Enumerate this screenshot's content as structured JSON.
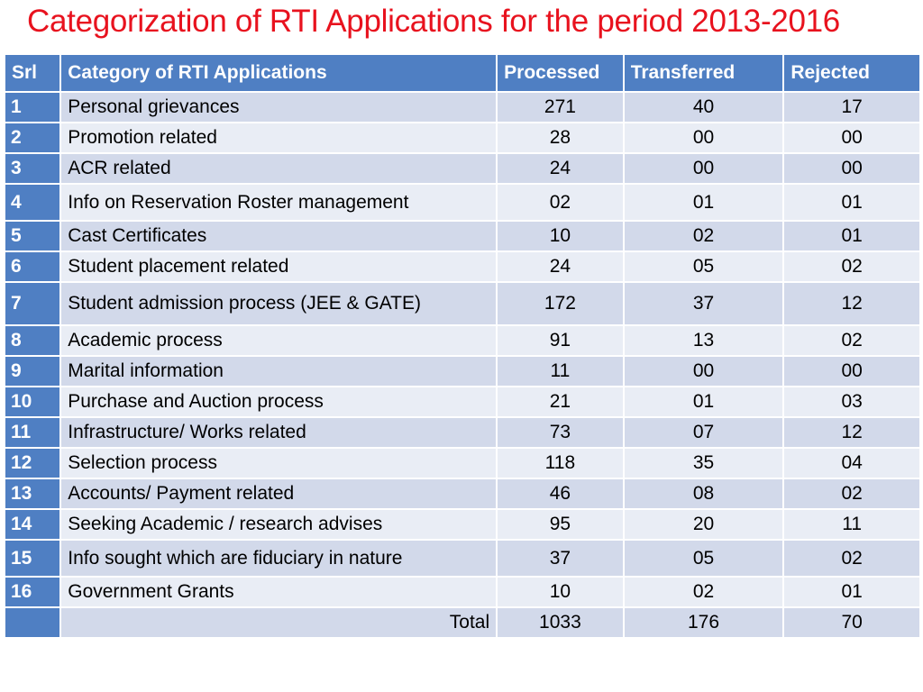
{
  "title": "Categorization of RTI Applications for the period 2013-2016",
  "table": {
    "headers": {
      "srl": "Srl",
      "category": "Category of RTI Applications",
      "processed": "Processed",
      "transferred": "Transferred",
      "rejected": "Rejected"
    },
    "rows": [
      {
        "srl": "1",
        "category": "Personal grievances",
        "processed": "271",
        "transferred": "40",
        "rejected": "17"
      },
      {
        "srl": "2",
        "category": "Promotion related",
        "processed": "28",
        "transferred": "00",
        "rejected": "00"
      },
      {
        "srl": "3",
        "category": "ACR related",
        "processed": "24",
        "transferred": "00",
        "rejected": "00"
      },
      {
        "srl": "4",
        "category": "Info on Reservation Roster management",
        "processed": "02",
        "transferred": "01",
        "rejected": "01"
      },
      {
        "srl": "5",
        "category": "Cast Certificates",
        "processed": "10",
        "transferred": "02",
        "rejected": "01"
      },
      {
        "srl": "6",
        "category": "Student placement related",
        "processed": "24",
        "transferred": "05",
        "rejected": "02"
      },
      {
        "srl": "7",
        "category": "Student admission process (JEE & GATE)",
        "processed": "172",
        "transferred": "37",
        "rejected": "12"
      },
      {
        "srl": "8",
        "category": "Academic process",
        "processed": "91",
        "transferred": "13",
        "rejected": "02"
      },
      {
        "srl": "9",
        "category": "Marital information",
        "processed": "11",
        "transferred": "00",
        "rejected": "00"
      },
      {
        "srl": "10",
        "category": "Purchase and Auction process",
        "processed": "21",
        "transferred": "01",
        "rejected": "03"
      },
      {
        "srl": "11",
        "category": "Infrastructure/ Works related",
        "processed": "73",
        "transferred": "07",
        "rejected": "12"
      },
      {
        "srl": "12",
        "category": "Selection process",
        "processed": "118",
        "transferred": "35",
        "rejected": "04"
      },
      {
        "srl": "13",
        "category": "Accounts/ Payment related",
        "processed": "46",
        "transferred": "08",
        "rejected": "02"
      },
      {
        "srl": "14",
        "category": "Seeking Academic / research advises",
        "processed": "95",
        "transferred": "20",
        "rejected": "11"
      },
      {
        "srl": "15",
        "category": "Info sought which are fiduciary in nature",
        "processed": "37",
        "transferred": "05",
        "rejected": "02"
      },
      {
        "srl": "16",
        "category": "Government Grants",
        "processed": "10",
        "transferred": "02",
        "rejected": "01"
      }
    ],
    "total": {
      "label": "Total",
      "processed": "1033",
      "transferred": "176",
      "rejected": "70"
    }
  },
  "colors": {
    "title": "#e8121e",
    "header": "#4f7fc3",
    "row_band_dark": "#d2d9ea",
    "row_band_light": "#e9edf5"
  }
}
